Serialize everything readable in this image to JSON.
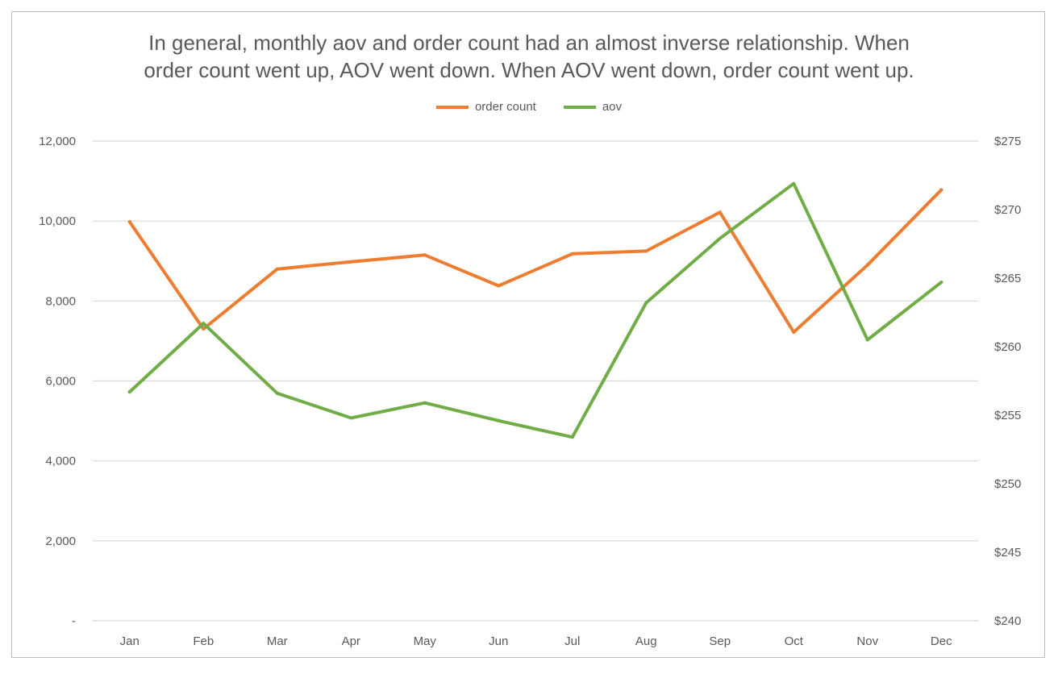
{
  "chart_data": {
    "type": "line",
    "title_lines": [
      "In general, monthly aov and order count had an almost inverse relationship. When",
      "order count went up, AOV went down. When AOV went down, order count went up."
    ],
    "categories": [
      "Jan",
      "Feb",
      "Mar",
      "Apr",
      "May",
      "Jun",
      "Jul",
      "Aug",
      "Sep",
      "Oct",
      "Nov",
      "Dec"
    ],
    "series": [
      {
        "name": "order count",
        "axis": "left",
        "color": "#ED7D31",
        "values": [
          9980,
          7300,
          8800,
          8980,
          9150,
          8380,
          9180,
          9250,
          10220,
          7220,
          8900,
          10780
        ]
      },
      {
        "name": "aov",
        "axis": "right",
        "color": "#70AD47",
        "values": [
          256.7,
          261.7,
          256.6,
          254.8,
          255.9,
          254.6,
          253.4,
          263.2,
          267.9,
          271.9,
          260.5,
          264.7
        ]
      }
    ],
    "y_left": {
      "min": 0,
      "max": 12000,
      "step": 2000,
      "tick_labels": [
        "-",
        "2,000",
        "4,000",
        "6,000",
        "8,000",
        "10,000",
        "12,000"
      ]
    },
    "y_right": {
      "min": 240,
      "max": 275,
      "step": 5,
      "tick_labels": [
        "$240",
        "$245",
        "$250",
        "$255",
        "$260",
        "$265",
        "$270",
        "$275"
      ]
    },
    "grid": true,
    "legend_position": "top"
  }
}
